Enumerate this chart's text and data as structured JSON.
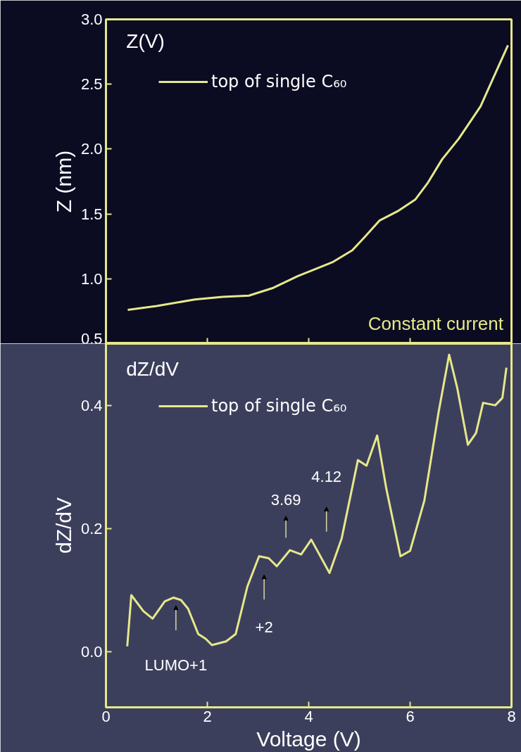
{
  "chart_data": [
    {
      "type": "line",
      "title": "Z(V)",
      "ylabel": "Z (nm)",
      "legend": "top left",
      "tick_labels": "y",
      "xlim": [
        0,
        8
      ],
      "xticks": [
        0,
        2,
        4,
        6,
        8
      ],
      "ylim": [
        0.5,
        3.0
      ],
      "yticks": [
        0.5,
        {
          "value": 1.0,
          "label": "1.0"
        },
        1.5,
        {
          "value": 2.0,
          "label": "2.0"
        },
        2.5,
        {
          "value": 3.0,
          "label": "3.0"
        }
      ],
      "series": [
        {
          "name": "top of single C₆₀",
          "color": "#e6e88a",
          "x": [
            0.43,
            1.0,
            1.75,
            2.3,
            2.82,
            3.3,
            3.78,
            4.48,
            4.86,
            5.1,
            5.4,
            5.75,
            6.1,
            6.35,
            6.63,
            6.96,
            7.39,
            7.93
          ],
          "values": [
            0.76,
            0.79,
            0.84,
            0.86,
            0.87,
            0.93,
            1.02,
            1.13,
            1.22,
            1.32,
            1.45,
            1.52,
            1.61,
            1.74,
            1.92,
            2.08,
            2.33,
            2.8
          ]
        }
      ],
      "annotations": [
        "Constant current"
      ]
    },
    {
      "type": "line",
      "title": "dZ/dV",
      "xlabel": "Voltage (V)",
      "ylabel": "dZ/dV",
      "legend": "top left",
      "xlim": [
        0,
        8
      ],
      "xticks": [
        0,
        2,
        4,
        6,
        8
      ],
      "ylim": [
        -0.09,
        0.5
      ],
      "yticks": [
        {
          "value": 0.0,
          "label": "0.0"
        },
        0.2,
        0.4
      ],
      "series": [
        {
          "name": "top of single C₆₀",
          "color": "#e6e88a",
          "x": [
            0.42,
            0.5,
            0.74,
            0.92,
            1.16,
            1.33,
            1.48,
            1.62,
            1.82,
            1.97,
            2.09,
            2.37,
            2.56,
            2.79,
            3.02,
            3.21,
            3.37,
            3.63,
            3.85,
            4.05,
            4.41,
            4.65,
            4.97,
            5.14,
            5.35,
            5.53,
            5.81,
            6.0,
            6.28,
            6.56,
            6.77,
            6.93,
            7.14,
            7.3,
            7.44,
            7.68,
            7.82,
            7.9
          ],
          "values": [
            0.009,
            0.092,
            0.066,
            0.054,
            0.082,
            0.088,
            0.084,
            0.07,
            0.029,
            0.021,
            0.011,
            0.017,
            0.029,
            0.106,
            0.155,
            0.152,
            0.139,
            0.165,
            0.158,
            0.182,
            0.128,
            0.184,
            0.311,
            0.302,
            0.351,
            0.265,
            0.155,
            0.164,
            0.245,
            0.388,
            0.482,
            0.428,
            0.336,
            0.355,
            0.404,
            0.4,
            0.412,
            0.461
          ]
        }
      ],
      "annotations": [
        "LUMO+1",
        "+2",
        "3.69",
        "4.12"
      ]
    }
  ]
}
